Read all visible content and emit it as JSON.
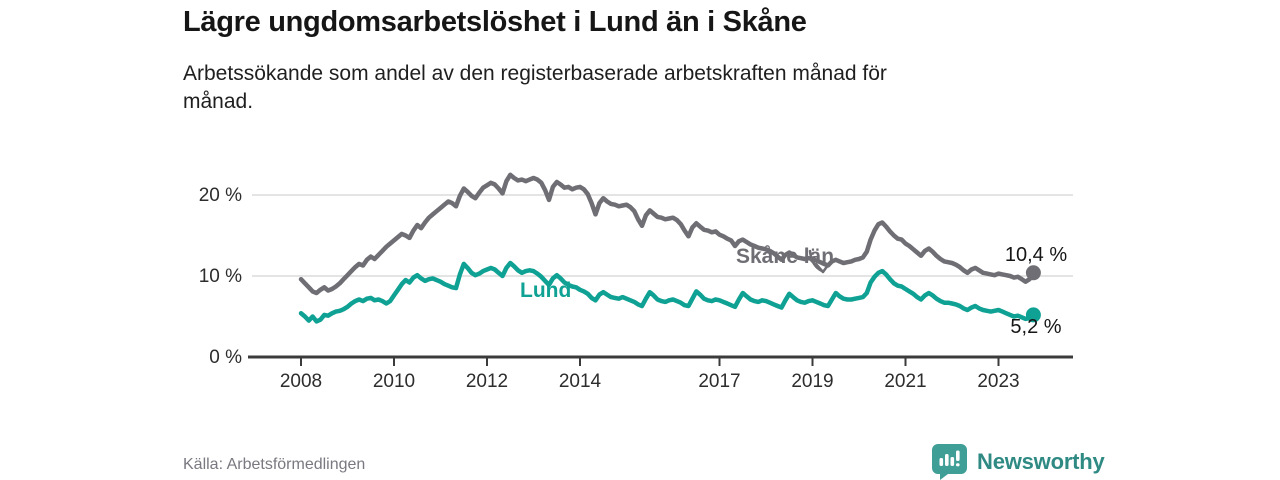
{
  "header": {
    "title": "Lägre ungdomsarbetslöshet i Lund än i Skåne",
    "subtitle": "Arbetssökande som andel av den registerbaserade arbetskraften månad för månad.",
    "subtitle_lines": [
      "Arbetssökande som andel av den registerbaserade arbetskraften månad för",
      "månad."
    ]
  },
  "footer": {
    "source": "Källa: Arbetsförmedlingen",
    "brand": "Newsworthy",
    "brand_icon_color": "#3f9e96",
    "brand_text_color": "#2f8a84"
  },
  "chart_data": {
    "type": "line",
    "title": "Lägre ungdomsarbetslöshet i Lund än i Skåne",
    "ylabel": "",
    "xlabel": "",
    "ylim": [
      0,
      24
    ],
    "grid": "horizontal",
    "x_unit": "monthly",
    "x_range": "2008-01 to 2023-10",
    "x_tick_labels": [
      "2008",
      "2010",
      "2012",
      "2014",
      "2017",
      "2019",
      "2021",
      "2023"
    ],
    "y_tick_labels": [
      "0 %",
      "10 %",
      "20 %"
    ],
    "y_tick_values": [
      0,
      10,
      20
    ],
    "colors": {
      "gridline": "#dcdcdc",
      "axis": "#3b3b3b",
      "value_label": "#161616"
    },
    "series": [
      {
        "name": "Skåne län",
        "color": "#6e6e74",
        "end_label": "10,4 %",
        "end_value": 10.4,
        "values": [
          9.6,
          9.1,
          8.6,
          8.1,
          7.9,
          8.3,
          8.6,
          8.2,
          8.4,
          8.7,
          9.1,
          9.6,
          10.1,
          10.6,
          11.1,
          11.5,
          11.3,
          12.0,
          12.4,
          12.1,
          12.6,
          13.1,
          13.6,
          14.0,
          14.4,
          14.8,
          15.2,
          15.0,
          14.7,
          15.6,
          16.3,
          15.9,
          16.6,
          17.2,
          17.6,
          18.0,
          18.4,
          18.8,
          19.2,
          19.0,
          18.6,
          19.9,
          20.8,
          20.4,
          19.9,
          19.6,
          20.3,
          20.9,
          21.2,
          21.5,
          21.3,
          20.8,
          20.2,
          21.7,
          22.5,
          22.1,
          21.8,
          21.9,
          21.7,
          21.9,
          22.1,
          21.9,
          21.5,
          20.6,
          19.4,
          21.0,
          21.6,
          21.3,
          20.9,
          21.0,
          20.7,
          20.9,
          21.0,
          20.7,
          20.1,
          19.0,
          17.6,
          19.0,
          19.6,
          19.2,
          18.9,
          18.8,
          18.6,
          18.7,
          18.8,
          18.5,
          18.0,
          17.0,
          16.2,
          17.5,
          18.1,
          17.7,
          17.3,
          17.2,
          17.0,
          17.1,
          17.2,
          16.9,
          16.4,
          15.6,
          14.9,
          16.0,
          16.5,
          16.1,
          15.7,
          15.6,
          15.4,
          15.5,
          15.1,
          14.9,
          14.6,
          14.4,
          13.7,
          14.3,
          14.5,
          14.2,
          13.9,
          13.7,
          13.5,
          13.4,
          13.3,
          13.1,
          12.8,
          12.4,
          12.0,
          12.6,
          12.9,
          12.6,
          12.3,
          12.2,
          12.1,
          12.2,
          12.1,
          11.9,
          11.7,
          11.5,
          11.3,
          11.8,
          12.0,
          11.8,
          11.6,
          11.7,
          11.8,
          12.0,
          12.1,
          12.3,
          13.0,
          14.5,
          15.6,
          16.4,
          16.6,
          16.1,
          15.5,
          15.0,
          14.6,
          14.5,
          14.0,
          13.7,
          13.3,
          12.9,
          12.5,
          13.1,
          13.4,
          13.0,
          12.5,
          12.1,
          11.8,
          11.7,
          11.6,
          11.4,
          11.1,
          10.7,
          10.4,
          10.8,
          11.0,
          10.7,
          10.4,
          10.3,
          10.2,
          10.1,
          10.3,
          10.2,
          10.1,
          10.0,
          9.8,
          9.9,
          9.6,
          9.3,
          9.6,
          10.4
        ]
      },
      {
        "name": "Lund",
        "color": "#0fa294",
        "end_label": "5,2 %",
        "end_value": 5.2,
        "values": [
          5.4,
          5.0,
          4.5,
          5.0,
          4.4,
          4.6,
          5.2,
          5.1,
          5.4,
          5.6,
          5.7,
          5.9,
          6.2,
          6.6,
          6.9,
          7.1,
          6.9,
          7.2,
          7.3,
          7.0,
          7.1,
          6.9,
          6.6,
          6.9,
          7.6,
          8.3,
          9.0,
          9.5,
          9.2,
          9.8,
          10.1,
          9.7,
          9.4,
          9.6,
          9.7,
          9.5,
          9.3,
          9.0,
          8.8,
          8.6,
          8.5,
          10.2,
          11.5,
          11.0,
          10.4,
          10.1,
          10.3,
          10.6,
          10.8,
          11.0,
          10.8,
          10.4,
          10.0,
          11.0,
          11.6,
          11.2,
          10.7,
          10.4,
          10.6,
          10.7,
          10.6,
          10.3,
          9.9,
          9.4,
          8.9,
          9.7,
          10.1,
          9.7,
          9.2,
          8.9,
          8.7,
          8.6,
          8.3,
          8.1,
          7.8,
          7.3,
          7.0,
          7.7,
          8.0,
          7.7,
          7.4,
          7.3,
          7.2,
          7.4,
          7.2,
          7.0,
          6.8,
          6.5,
          6.3,
          7.2,
          8.0,
          7.6,
          7.1,
          6.9,
          6.8,
          7.0,
          7.1,
          6.9,
          6.7,
          6.4,
          6.3,
          7.2,
          8.1,
          7.7,
          7.2,
          7.0,
          6.9,
          7.1,
          7.0,
          6.8,
          6.6,
          6.4,
          6.2,
          7.1,
          7.9,
          7.5,
          7.1,
          6.9,
          6.8,
          7.0,
          6.9,
          6.7,
          6.5,
          6.3,
          6.1,
          7.0,
          7.8,
          7.4,
          7.0,
          6.8,
          6.7,
          6.9,
          7.0,
          6.8,
          6.6,
          6.4,
          6.3,
          7.1,
          7.9,
          7.5,
          7.2,
          7.1,
          7.1,
          7.2,
          7.3,
          7.4,
          7.9,
          9.2,
          9.9,
          10.4,
          10.6,
          10.2,
          9.6,
          9.1,
          8.8,
          8.7,
          8.4,
          8.1,
          7.8,
          7.4,
          7.1,
          7.6,
          7.9,
          7.6,
          7.2,
          6.9,
          6.7,
          6.7,
          6.6,
          6.5,
          6.3,
          6.0,
          5.8,
          6.1,
          6.3,
          6.0,
          5.8,
          5.7,
          5.6,
          5.7,
          5.8,
          5.6,
          5.4,
          5.2,
          5.0,
          5.1,
          4.9,
          4.7,
          4.8,
          5.2
        ]
      }
    ]
  }
}
